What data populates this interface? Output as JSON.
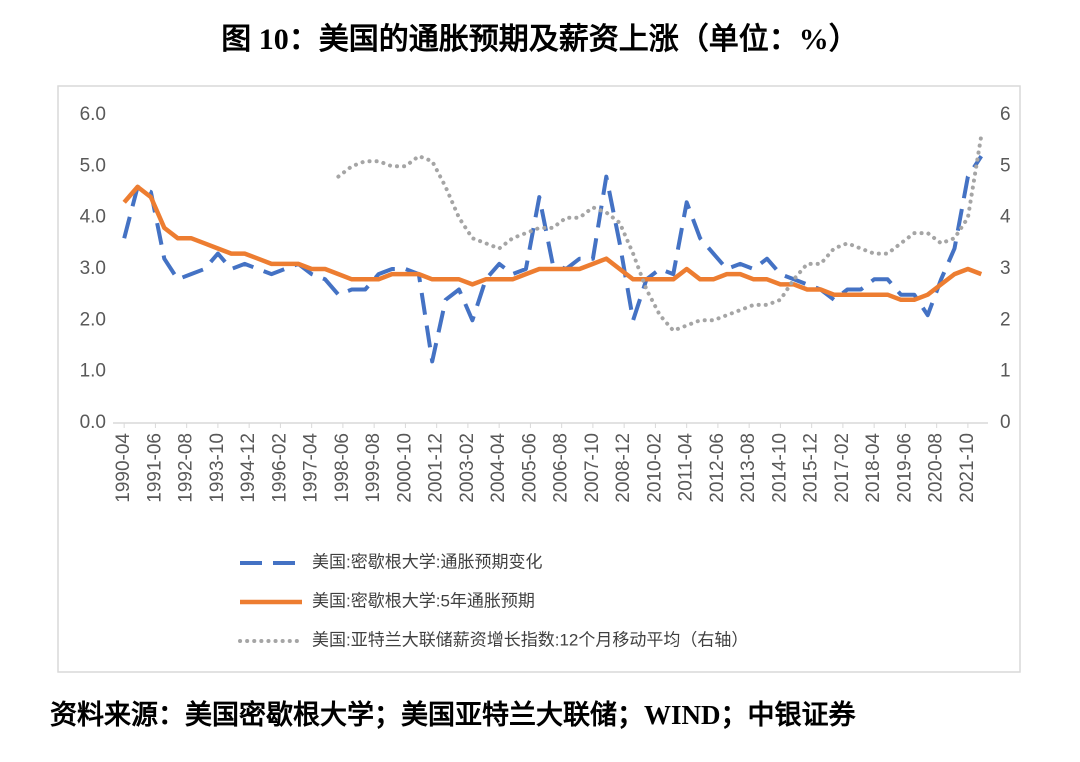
{
  "chart_data": {
    "type": "line",
    "title": "图 10：美国的通胀预期及薪资上涨（单位：%）",
    "source": "资料来源：美国密歇根大学；美国亚特兰大联储；WIND；中银证券",
    "legend": "bottom",
    "x": [
      "1990-04",
      "1990-10",
      "1991-04",
      "1991-10",
      "1992-04",
      "1992-10",
      "1993-04",
      "1993-10",
      "1994-04",
      "1994-10",
      "1995-04",
      "1995-10",
      "1996-04",
      "1996-10",
      "1997-04",
      "1997-10",
      "1998-04",
      "1998-10",
      "1999-04",
      "1999-10",
      "2000-04",
      "2000-10",
      "2001-04",
      "2001-10",
      "2002-04",
      "2002-10",
      "2003-04",
      "2003-10",
      "2004-04",
      "2004-10",
      "2005-04",
      "2005-10",
      "2006-04",
      "2006-10",
      "2007-04",
      "2007-10",
      "2008-04",
      "2008-10",
      "2009-04",
      "2009-10",
      "2010-04",
      "2010-10",
      "2011-04",
      "2011-10",
      "2012-04",
      "2012-10",
      "2013-04",
      "2013-10",
      "2014-04",
      "2014-10",
      "2015-04",
      "2015-10",
      "2016-04",
      "2016-10",
      "2017-04",
      "2017-10",
      "2018-04",
      "2018-10",
      "2019-04",
      "2019-10",
      "2020-04",
      "2020-10",
      "2021-04",
      "2021-10",
      "2022-04"
    ],
    "xlim": [
      "1989-11",
      "2022-07"
    ],
    "xticks": [
      "1990-04",
      "1991-06",
      "1992-08",
      "1993-10",
      "1994-12",
      "1996-02",
      "1997-04",
      "1998-06",
      "1999-08",
      "2000-10",
      "2001-12",
      "2003-02",
      "2004-04",
      "2005-06",
      "2006-08",
      "2007-10",
      "2008-12",
      "2010-02",
      "2011-04",
      "2012-06",
      "2013-08",
      "2014-10",
      "2015-12",
      "2017-02",
      "2018-04",
      "2019-06",
      "2020-08",
      "2021-10"
    ],
    "ylim": [
      0,
      6
    ],
    "yticks": [
      {
        "value": 0,
        "label": "0.0"
      },
      {
        "value": 1,
        "label": "1.0"
      },
      {
        "value": 2,
        "label": "2.0"
      },
      {
        "value": 3,
        "label": "3.0"
      },
      {
        "value": 4,
        "label": "4.0"
      },
      {
        "value": 5,
        "label": "5.0"
      },
      {
        "value": 6,
        "label": "6.0"
      }
    ],
    "y2lim": [
      0,
      6
    ],
    "y2ticks": [
      0,
      1,
      2,
      3,
      4,
      5,
      6
    ],
    "series": [
      {
        "name": "美国:密歇根大学:通胀预期变化",
        "color": "#4472c4",
        "dash": "dashed",
        "values": [
          3.6,
          4.6,
          4.5,
          3.2,
          2.8,
          2.9,
          3.0,
          3.3,
          3.0,
          3.1,
          3.0,
          2.9,
          3.0,
          3.1,
          2.9,
          2.8,
          2.5,
          2.6,
          2.6,
          2.9,
          3.0,
          3.0,
          2.9,
          1.2,
          2.4,
          2.6,
          2.0,
          2.8,
          3.1,
          2.9,
          3.0,
          4.4,
          3.1,
          3.0,
          3.2,
          3.2,
          4.8,
          3.5,
          2.0,
          2.8,
          3.0,
          2.9,
          4.3,
          3.6,
          3.3,
          3.0,
          3.1,
          3.0,
          3.2,
          2.9,
          2.8,
          2.7,
          2.6,
          2.4,
          2.6,
          2.6,
          2.8,
          2.8,
          2.5,
          2.5,
          2.1,
          2.8,
          3.4,
          4.8,
          5.2
        ]
      },
      {
        "name": "美国:密歇根大学:5年通胀预期",
        "color": "#ed7d31",
        "dash": "solid",
        "values": [
          4.3,
          4.6,
          4.4,
          3.8,
          3.6,
          3.6,
          3.5,
          3.4,
          3.3,
          3.3,
          3.2,
          3.1,
          3.1,
          3.1,
          3.0,
          3.0,
          2.9,
          2.8,
          2.8,
          2.8,
          2.9,
          2.9,
          2.9,
          2.8,
          2.8,
          2.8,
          2.7,
          2.8,
          2.8,
          2.8,
          2.9,
          3.0,
          3.0,
          3.0,
          3.0,
          3.1,
          3.2,
          3.0,
          2.8,
          2.8,
          2.8,
          2.8,
          3.0,
          2.8,
          2.8,
          2.9,
          2.9,
          2.8,
          2.8,
          2.7,
          2.7,
          2.6,
          2.6,
          2.5,
          2.5,
          2.5,
          2.5,
          2.5,
          2.4,
          2.4,
          2.5,
          2.7,
          2.9,
          3.0,
          2.9
        ]
      },
      {
        "name": "美国:亚特兰大联储薪资增长指数:12个月移动平均（右轴）",
        "color": "#a5a5a5",
        "dash": "dotted",
        "axis": "y2",
        "values": [
          null,
          null,
          null,
          null,
          null,
          null,
          null,
          null,
          null,
          null,
          null,
          null,
          null,
          null,
          null,
          null,
          4.8,
          5.0,
          5.1,
          5.1,
          5.0,
          5.0,
          5.2,
          5.1,
          4.6,
          4.0,
          3.6,
          3.5,
          3.4,
          3.6,
          3.7,
          3.8,
          3.8,
          4.0,
          4.0,
          4.2,
          4.1,
          3.9,
          3.3,
          2.6,
          2.1,
          1.8,
          1.9,
          2.0,
          2.0,
          2.1,
          2.2,
          2.3,
          2.3,
          2.4,
          2.8,
          3.1,
          3.1,
          3.4,
          3.5,
          3.4,
          3.3,
          3.3,
          3.5,
          3.7,
          3.7,
          3.5,
          3.6,
          4.0,
          5.6
        ]
      }
    ]
  }
}
